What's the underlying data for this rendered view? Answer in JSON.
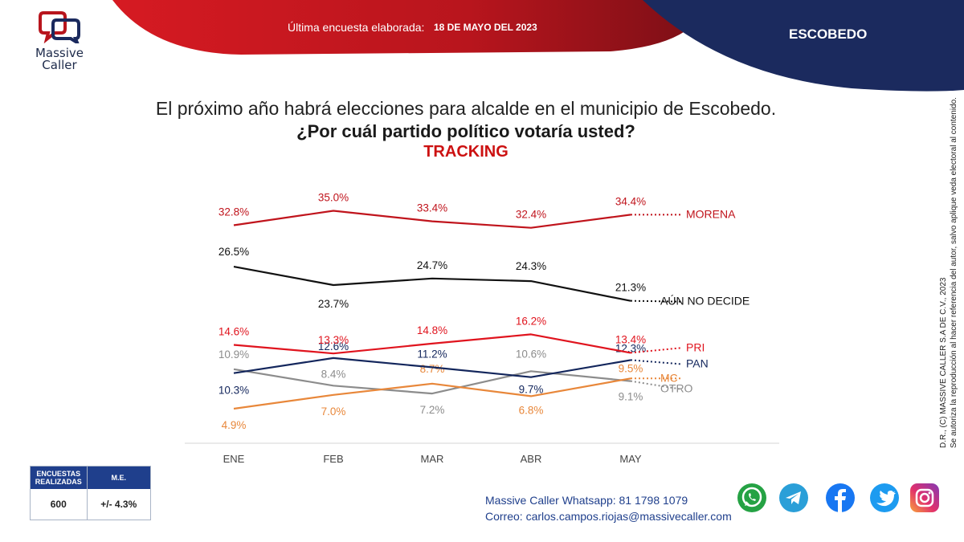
{
  "header": {
    "logo_line1": "Massive",
    "logo_line2": "Caller",
    "survey_label": "Última encuesta elaborada:",
    "survey_date": "18 DE MAYO DEL 2023",
    "city": "ESCOBEDO"
  },
  "question": {
    "line1": "El próximo año habrá elecciones para alcalde en el municipio de Escobedo.",
    "line2": "¿Por cuál partido político votaría usted?",
    "tracking": "TRACKING"
  },
  "chart_data": {
    "type": "line",
    "categories": [
      "ENE",
      "FEB",
      "MAR",
      "ABR",
      "MAY"
    ],
    "ylim": [
      0,
      40
    ],
    "grid": false,
    "legend": "labels at line ends (right)",
    "series": [
      {
        "name": "MORENA",
        "values": [
          32.8,
          35.0,
          33.4,
          32.4,
          34.4
        ],
        "labels": [
          "32.8%",
          "35.0%",
          "33.4%",
          "32.4%",
          "34.4%"
        ],
        "color": "#c0141c"
      },
      {
        "name": "AÚN NO DECIDE",
        "values": [
          26.5,
          23.7,
          24.7,
          24.3,
          21.3
        ],
        "labels": [
          "26.5%",
          "23.7%",
          "24.7%",
          "24.3%",
          "21.3%"
        ],
        "color": "#111111"
      },
      {
        "name": "PRI",
        "values": [
          14.6,
          13.3,
          14.8,
          16.2,
          13.4
        ],
        "labels": [
          "14.6%",
          "13.3%",
          "14.8%",
          "16.2%",
          "13.4%"
        ],
        "color": "#e0141e"
      },
      {
        "name": "PAN",
        "values": [
          10.3,
          12.6,
          11.2,
          9.7,
          12.3
        ],
        "labels": [
          "10.3%",
          "12.6%",
          "11.2%",
          "9.7%",
          "12.3%"
        ],
        "color": "#13265c"
      },
      {
        "name": "MC",
        "values": [
          4.9,
          7.0,
          8.7,
          6.8,
          9.5
        ],
        "labels": [
          "4.9%",
          "7.0%",
          "8.7%",
          "6.8%",
          "9.5%"
        ],
        "color": "#e8873a"
      },
      {
        "name": "OTRO",
        "values": [
          10.9,
          8.4,
          7.2,
          10.6,
          9.1
        ],
        "labels": [
          "10.9%",
          "8.4%",
          "7.2%",
          "10.6%",
          "9.1%"
        ],
        "color": "#8c8c8c"
      }
    ]
  },
  "side_note": {
    "line1": "D.R., (C) MASSIVE CALLER S.A DE C.V., 2023",
    "line2": "Se autoriza la reproducción al hacer referencia del autor, salvo aplique veda electoral al contenido."
  },
  "stats": {
    "col1_header": "ENCUESTAS REALIZADAS",
    "col2_header": "M.E.",
    "col1_value": "600",
    "col2_value": "+/- 4.3%"
  },
  "contact": {
    "line1": "Massive Caller Whatsapp: 81 1798 1079",
    "line2_label": "Correo:",
    "line2_value": "carlos.campos.riojas@massivecaller.com"
  },
  "social_icons": [
    "whatsapp-icon",
    "telegram-icon",
    "facebook-icon",
    "twitter-icon",
    "instagram-icon"
  ],
  "colors": {
    "brand_red": "#b8151d",
    "brand_navy": "#1b2a5e",
    "accent_blue": "#1f3f8c"
  }
}
